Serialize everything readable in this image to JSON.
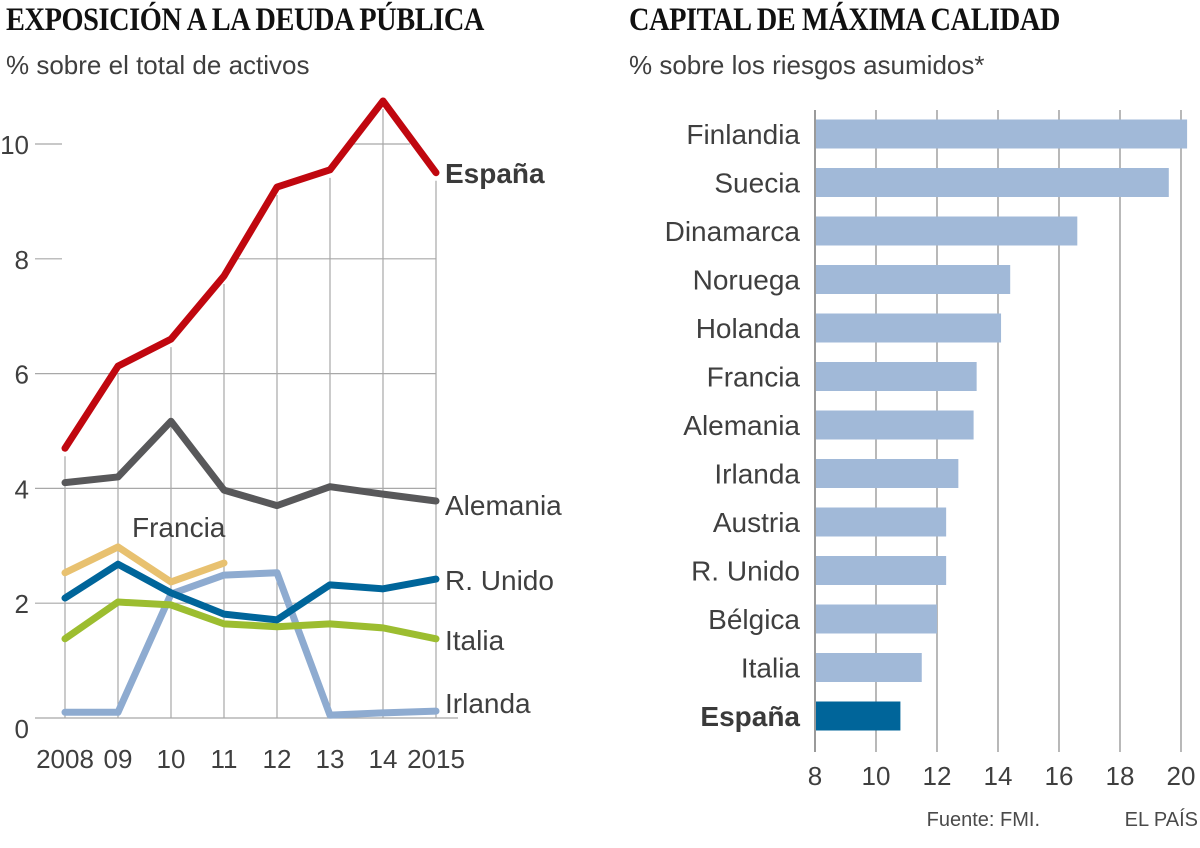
{
  "chart_data": [
    {
      "type": "line",
      "title": "EXPOSICIÓN A LA DEUDA PÚBLICA",
      "subtitle": "% sobre el total de activos",
      "xlabel": "",
      "ylabel": "",
      "x": [
        "2008",
        "09",
        "10",
        "11",
        "12",
        "13",
        "14",
        "2015"
      ],
      "ylim": [
        0,
        10.8
      ],
      "yticks": [
        0,
        2,
        4,
        6,
        8,
        10
      ],
      "ytick_labels": [
        "0",
        "2",
        "4",
        "6",
        "8",
        "10"
      ],
      "grid": true,
      "series": [
        {
          "name": "España",
          "label": "España",
          "color": "#c0070f",
          "bold": true,
          "values": [
            4.7,
            6.13,
            6.6,
            7.7,
            9.25,
            9.55,
            10.75,
            9.5
          ]
        },
        {
          "name": "Alemania",
          "label": "Alemania",
          "color": "#58585a",
          "bold": false,
          "values": [
            4.1,
            4.2,
            5.17,
            3.97,
            3.7,
            4.03,
            3.9,
            3.78
          ]
        },
        {
          "name": "Francia",
          "label": "Francia",
          "color": "#e8c170",
          "bold": false,
          "values": [
            2.53,
            2.98,
            2.37,
            2.7,
            null,
            null,
            null,
            null
          ]
        },
        {
          "name": "R. Unido",
          "label": "R. Unido",
          "color": "#00659a",
          "bold": false,
          "values": [
            2.09,
            2.68,
            2.18,
            1.81,
            1.71,
            2.32,
            2.25,
            2.42
          ]
        },
        {
          "name": "Italia",
          "label": "Italia",
          "color": "#9cbd30",
          "bold": false,
          "values": [
            1.38,
            2.02,
            1.97,
            1.64,
            1.59,
            1.64,
            1.57,
            1.38
          ]
        },
        {
          "name": "Irlanda",
          "label": "Irlanda",
          "color": "#8eabd0",
          "bold": false,
          "values": [
            0.1,
            0.1,
            2.16,
            2.49,
            2.53,
            0.05,
            0.09,
            0.12
          ]
        }
      ]
    },
    {
      "type": "bar",
      "orientation": "horizontal",
      "title": "CAPITAL DE MÁXIMA CALIDAD",
      "subtitle": "% sobre los riesgos asumidos*",
      "xlabel": "",
      "ylabel": "",
      "xlim": [
        8,
        20.3
      ],
      "xticks": [
        8,
        10,
        12,
        14,
        16,
        18,
        20
      ],
      "xtick_labels": [
        "8",
        "10",
        "12",
        "14",
        "16",
        "18",
        "20"
      ],
      "grid": true,
      "categories": [
        "Finlandia",
        "Suecia",
        "Dinamarca",
        "Noruega",
        "Holanda",
        "Francia",
        "Alemania",
        "Irlanda",
        "Austria",
        "R. Unido",
        "Bélgica",
        "Italia",
        "España"
      ],
      "values": [
        20.2,
        19.6,
        16.6,
        14.4,
        14.1,
        13.3,
        13.2,
        12.7,
        12.3,
        12.3,
        12.0,
        11.5,
        10.8
      ],
      "highlight": "España",
      "colors": {
        "bar": "#a1b9d8",
        "highlight": "#00659a"
      }
    }
  ],
  "footer": {
    "source": "Fuente: FMI.",
    "brand": "EL PAÍS"
  }
}
